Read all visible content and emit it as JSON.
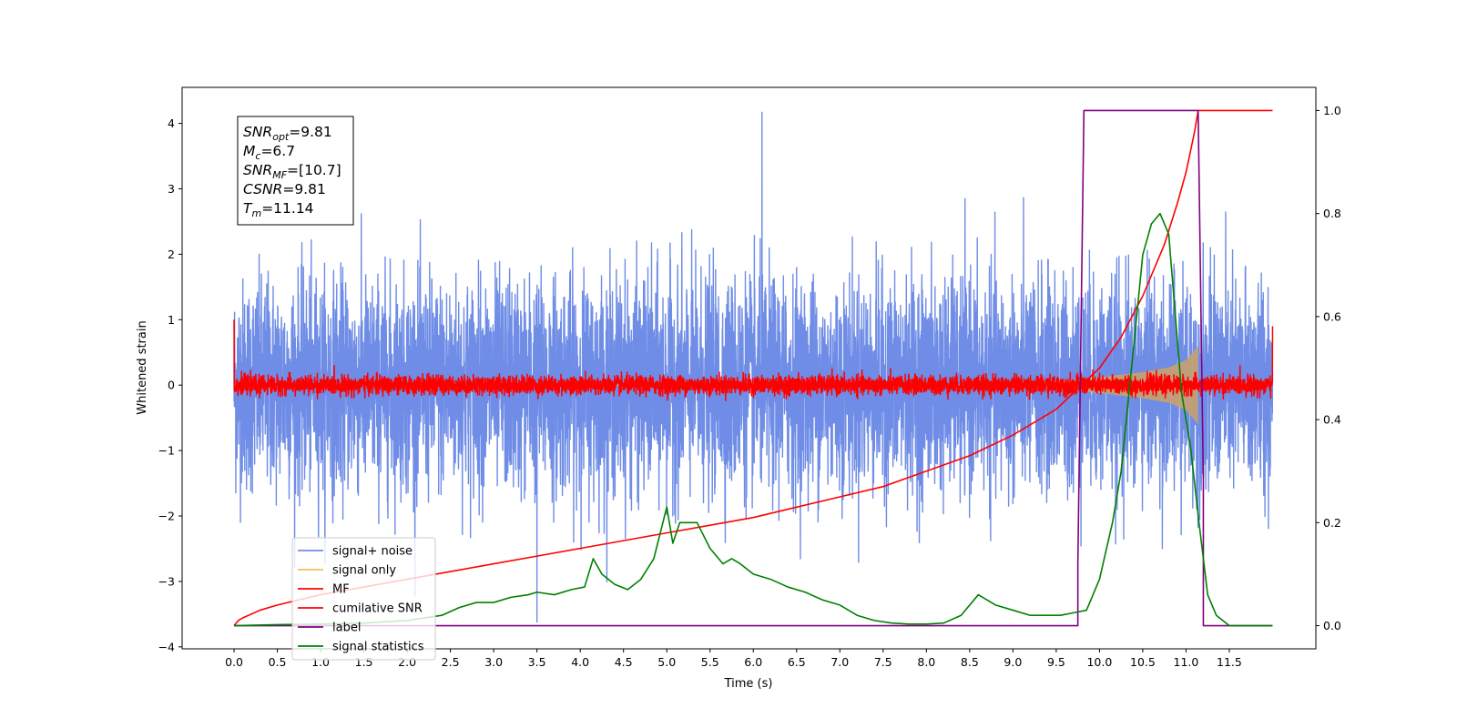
{
  "chart_data": {
    "type": "line",
    "title": "",
    "xlabel": "Time (s)",
    "ylabel": "Whitened strain",
    "xlim": [
      -0.6,
      12.5
    ],
    "ylim": [
      -4.03,
      4.55
    ],
    "ylim_right": [
      -0.045,
      1.045
    ],
    "xticks": [
      "0.0",
      "0.5",
      "1.0",
      "1.5",
      "2.0",
      "2.5",
      "3.0",
      "3.5",
      "4.0",
      "4.5",
      "5.0",
      "5.5",
      "6.0",
      "6.5",
      "7.0",
      "7.5",
      "8.0",
      "8.5",
      "9.0",
      "9.5",
      "10.0",
      "10.5",
      "11.0",
      "11.5"
    ],
    "yticks_left": [
      "−4",
      "−3",
      "−2",
      "−1",
      "0",
      "1",
      "2",
      "3",
      "4"
    ],
    "yticks_right": [
      "0.0",
      "0.2",
      "0.4",
      "0.6",
      "0.8",
      "1.0"
    ],
    "grid": false,
    "legend_position": "lower-left",
    "annotation": {
      "lines": [
        {
          "sym": "SNR",
          "sub": "opt",
          "val": "=9.81"
        },
        {
          "sym": "M",
          "sub": "c",
          "val": "=6.7"
        },
        {
          "sym": "SNR",
          "sub": "MF",
          "val": "=[10.7]"
        },
        {
          "sym": "CSNR",
          "sub": "",
          "val": "=9.81"
        },
        {
          "sym": "T",
          "sub": "m",
          "val": "=11.14"
        }
      ]
    },
    "series": [
      {
        "name": "signal+ noise",
        "color": "#6f8de6",
        "axis": "left",
        "kind": "noise",
        "x_range": [
          0.0,
          12.0
        ],
        "amplitude_std": 0.8,
        "max": 4.17,
        "min": -3.62
      },
      {
        "name": "signal only",
        "color": "#f0c060",
        "fill_color": "#c8a070",
        "axis": "left",
        "kind": "chirp_envelope",
        "x_range": [
          0.0,
          11.14
        ],
        "envelope": [
          [
            9.0,
            0.05
          ],
          [
            9.5,
            0.07
          ],
          [
            10.0,
            0.12
          ],
          [
            10.5,
            0.2
          ],
          [
            10.8,
            0.27
          ],
          [
            11.0,
            0.38
          ],
          [
            11.14,
            0.6
          ]
        ]
      },
      {
        "name": "MF",
        "color": "#ff0000",
        "axis": "left",
        "kind": "noise",
        "x_range": [
          0.0,
          12.0
        ],
        "amplitude_std": 0.07,
        "edge_values": [
          1.0,
          0.9
        ]
      },
      {
        "name": "cumilative SNR",
        "color": "#ff0000",
        "axis": "right",
        "x": [
          0.0,
          0.05,
          0.1,
          0.3,
          0.5,
          1.0,
          1.5,
          2.0,
          2.5,
          3.0,
          3.5,
          4.0,
          4.5,
          5.0,
          5.5,
          6.0,
          6.5,
          7.0,
          7.5,
          8.0,
          8.5,
          9.0,
          9.5,
          9.75,
          10.0,
          10.25,
          10.5,
          10.75,
          10.9,
          11.0,
          11.1,
          11.14,
          12.0
        ],
        "y": [
          0.0,
          0.01,
          0.015,
          0.03,
          0.04,
          0.06,
          0.075,
          0.09,
          0.105,
          0.12,
          0.135,
          0.15,
          0.165,
          0.18,
          0.195,
          0.21,
          0.23,
          0.25,
          0.27,
          0.3,
          0.33,
          0.37,
          0.42,
          0.46,
          0.5,
          0.56,
          0.64,
          0.74,
          0.82,
          0.88,
          0.96,
          1.0,
          1.0
        ]
      },
      {
        "name": "label",
        "color": "#800080",
        "axis": "right",
        "x": [
          0.0,
          9.75,
          9.75,
          9.82,
          11.14,
          11.2,
          11.2,
          12.0
        ],
        "y": [
          0.0,
          0.0,
          0.12,
          1.0,
          1.0,
          0.28,
          0.0,
          0.0
        ]
      },
      {
        "name": "signal statistics",
        "color": "#008000",
        "axis": "right",
        "x": [
          0.0,
          0.5,
          1.0,
          1.5,
          2.0,
          2.2,
          2.4,
          2.6,
          2.8,
          3.0,
          3.2,
          3.4,
          3.5,
          3.7,
          3.9,
          4.05,
          4.15,
          4.25,
          4.4,
          4.55,
          4.7,
          4.85,
          5.0,
          5.07,
          5.15,
          5.25,
          5.35,
          5.5,
          5.65,
          5.75,
          5.85,
          6.0,
          6.2,
          6.4,
          6.6,
          6.8,
          7.0,
          7.2,
          7.4,
          7.6,
          7.8,
          8.0,
          8.2,
          8.4,
          8.6,
          8.8,
          9.0,
          9.2,
          9.4,
          9.55,
          9.7,
          9.85,
          10.0,
          10.15,
          10.25,
          10.4,
          10.5,
          10.6,
          10.7,
          10.8,
          10.95,
          11.05,
          11.15,
          11.25,
          11.35,
          11.5,
          12.0
        ],
        "y": [
          0.0,
          0.002,
          0.003,
          0.005,
          0.01,
          0.015,
          0.02,
          0.035,
          0.045,
          0.045,
          0.055,
          0.06,
          0.065,
          0.06,
          0.07,
          0.075,
          0.13,
          0.1,
          0.08,
          0.07,
          0.09,
          0.13,
          0.23,
          0.16,
          0.2,
          0.2,
          0.2,
          0.15,
          0.12,
          0.13,
          0.12,
          0.1,
          0.09,
          0.075,
          0.065,
          0.05,
          0.04,
          0.02,
          0.01,
          0.005,
          0.003,
          0.003,
          0.005,
          0.02,
          0.06,
          0.04,
          0.03,
          0.02,
          0.02,
          0.02,
          0.025,
          0.03,
          0.09,
          0.2,
          0.3,
          0.55,
          0.72,
          0.78,
          0.8,
          0.76,
          0.45,
          0.35,
          0.2,
          0.06,
          0.02,
          0.0,
          0.0
        ]
      }
    ]
  }
}
